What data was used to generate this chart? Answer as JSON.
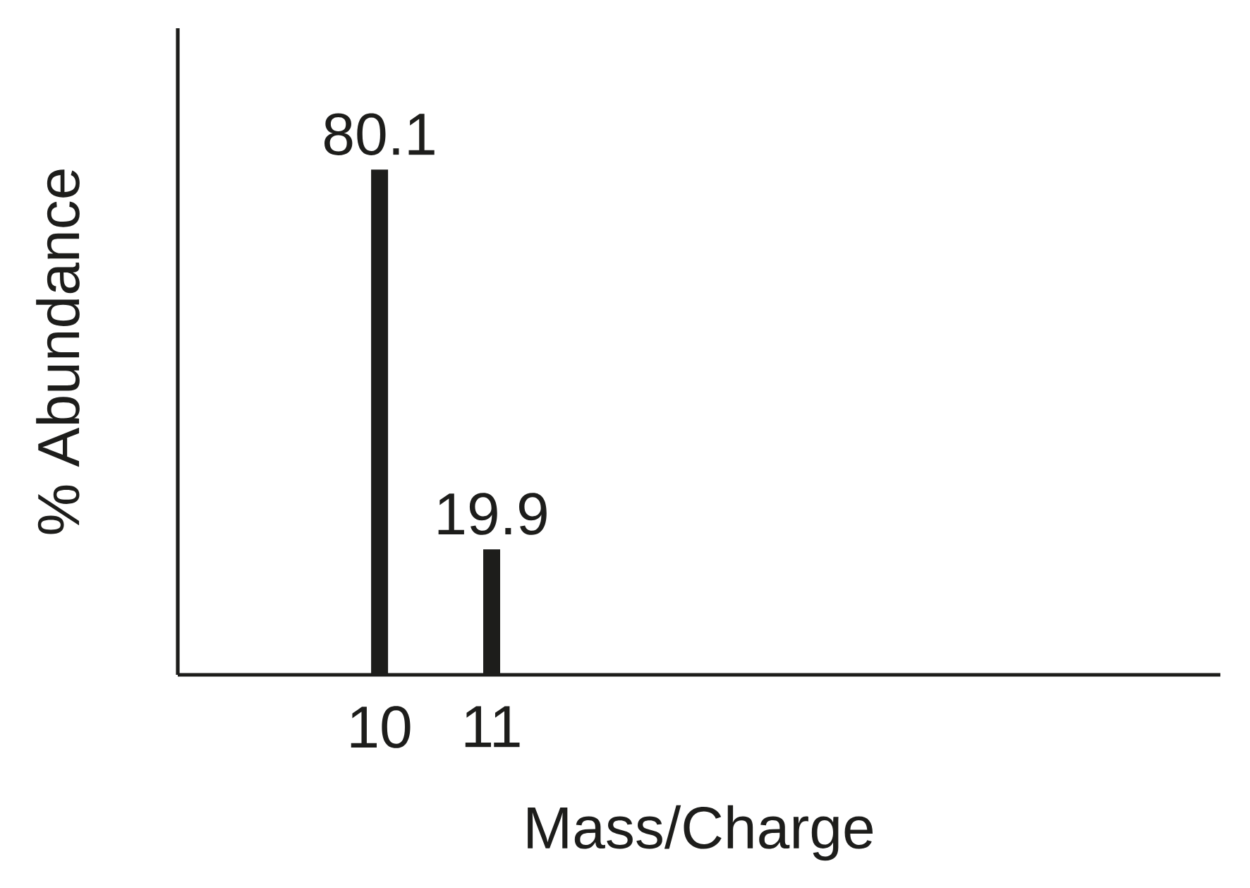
{
  "chart_data": {
    "type": "bar",
    "xlabel": "Mass/Charge",
    "ylabel": "% Abundance",
    "x": [
      10,
      11
    ],
    "values": [
      80.1,
      19.9
    ],
    "color": "#1d1d1b",
    "data_labels": true,
    "xlim": [
      8.2,
      17.5
    ],
    "xticks": [
      10,
      11
    ],
    "tick_labels": "x"
  }
}
